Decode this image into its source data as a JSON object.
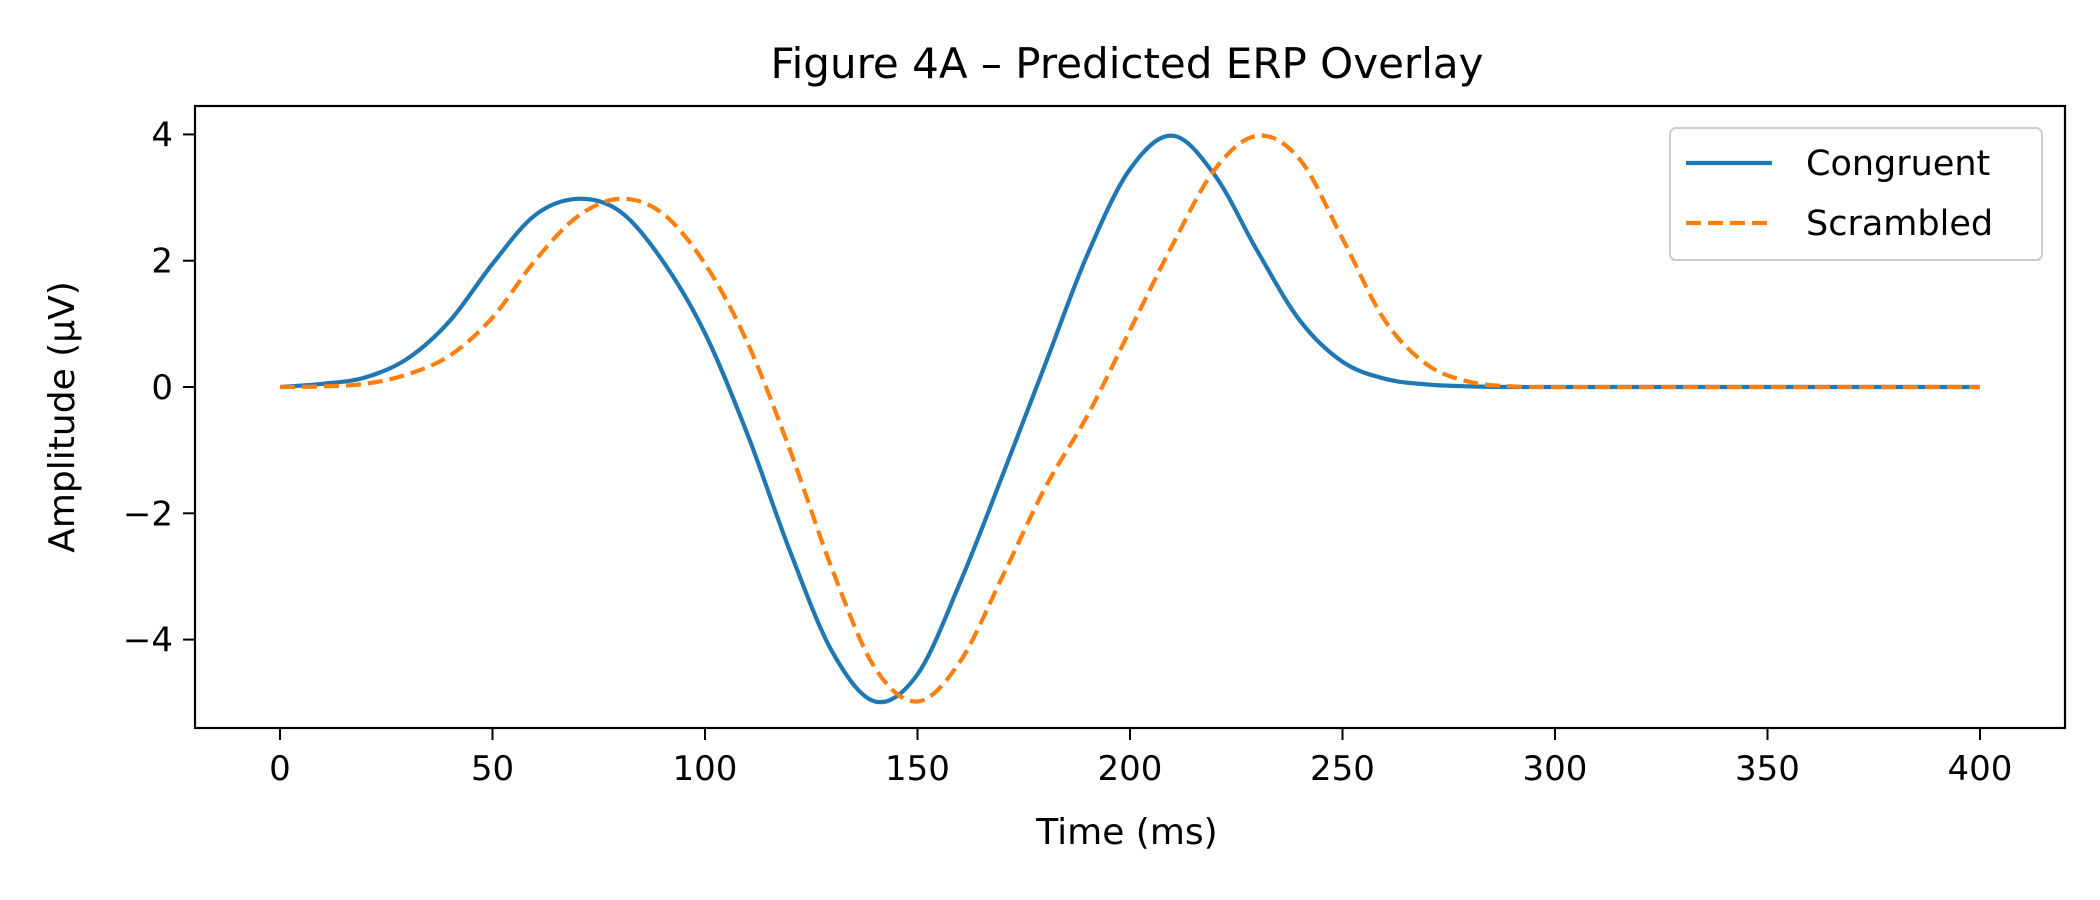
{
  "chart_data": {
    "type": "line",
    "title": "Figure 4A – Predicted ERP Overlay",
    "xlabel": "Time (ms)",
    "ylabel": "Amplitude (μV)",
    "xlim": [
      -20,
      420
    ],
    "ylim": [
      -5.4,
      4.45
    ],
    "xticks": [
      0,
      50,
      100,
      150,
      200,
      250,
      300,
      350,
      400
    ],
    "yticks": [
      -4,
      -2,
      0,
      2,
      4
    ],
    "ytick_labels": [
      "−4",
      "−2",
      "0",
      "2",
      "4"
    ],
    "grid": false,
    "legend_position": "top-right",
    "series": [
      {
        "name": "Congruent",
        "color": "#1f77b4",
        "style": "solid",
        "x": [
          0,
          10,
          20,
          30,
          40,
          50,
          60,
          70,
          80,
          90,
          100,
          110,
          120,
          130,
          140,
          150,
          160,
          170,
          180,
          190,
          200,
          210,
          220,
          230,
          240,
          250,
          260,
          270,
          280,
          290,
          300,
          320,
          340,
          360,
          380,
          400
        ],
        "y": [
          0.0,
          0.05,
          0.15,
          0.45,
          1.05,
          1.95,
          2.72,
          2.98,
          2.78,
          2.0,
          0.85,
          -0.75,
          -2.6,
          -4.2,
          -4.98,
          -4.55,
          -3.1,
          -1.4,
          0.35,
          2.1,
          3.45,
          3.98,
          3.35,
          2.15,
          1.05,
          0.4,
          0.13,
          0.04,
          0.01,
          0.0,
          0.0,
          0.0,
          0.0,
          0.0,
          0.0,
          0.0
        ]
      },
      {
        "name": "Scrambled",
        "color": "#ff7f0e",
        "style": "dashed",
        "x": [
          0,
          10,
          20,
          30,
          40,
          50,
          60,
          70,
          80,
          90,
          100,
          110,
          120,
          130,
          140,
          150,
          160,
          170,
          180,
          190,
          200,
          210,
          220,
          230,
          240,
          250,
          260,
          270,
          280,
          290,
          300,
          320,
          340,
          360,
          380,
          400
        ],
        "y": [
          0.0,
          0.01,
          0.05,
          0.2,
          0.5,
          1.1,
          2.0,
          2.7,
          2.98,
          2.75,
          1.95,
          0.7,
          -1.0,
          -2.9,
          -4.45,
          -4.98,
          -4.35,
          -3.0,
          -1.6,
          -0.45,
          0.9,
          2.25,
          3.45,
          3.98,
          3.6,
          2.35,
          1.05,
          0.35,
          0.08,
          0.01,
          0.0,
          0.0,
          0.0,
          0.0,
          0.0,
          0.0
        ]
      }
    ]
  }
}
